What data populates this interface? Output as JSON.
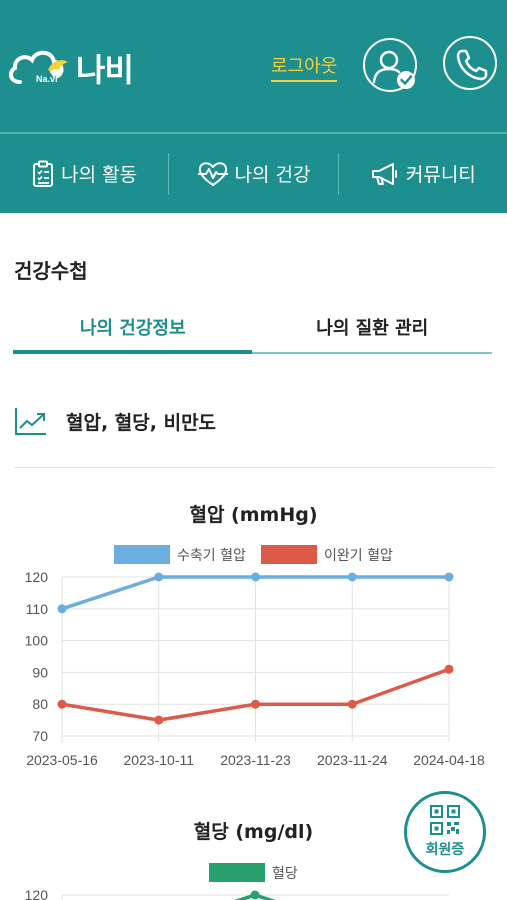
{
  "header": {
    "logo_sub": "Na.vi",
    "logo_text": "나비",
    "logout_label": "로그아웃"
  },
  "nav": {
    "items": [
      {
        "label": "나의 활동",
        "icon": "clipboard-list-icon"
      },
      {
        "label": "나의 건강",
        "icon": "heart-pulse-icon"
      },
      {
        "label": "커뮤니티",
        "icon": "megaphone-icon"
      }
    ]
  },
  "page": {
    "title": "건강수첩",
    "tabs": [
      {
        "label": "나의 건강정보",
        "active": true
      },
      {
        "label": "나의 질환 관리",
        "active": false
      }
    ],
    "section_label": "혈압, 혈당, 비만도"
  },
  "qr_button": {
    "label": "회원증"
  },
  "colors": {
    "brand": "#1e8f8f",
    "logout": "#f5d13a",
    "systolic": "#6aaee0",
    "diastolic": "#dc5a48",
    "glucose": "#27a06b"
  },
  "chart_data": [
    {
      "type": "line",
      "title": "혈압 (mmHg)",
      "x": [
        "2023-05-16",
        "2023-10-11",
        "2023-11-23",
        "2023-11-24",
        "2024-04-18"
      ],
      "series": [
        {
          "name": "수축기 혈압",
          "values": [
            110,
            120,
            120,
            120,
            120
          ]
        },
        {
          "name": "이완기 혈압",
          "values": [
            80,
            75,
            80,
            80,
            91
          ]
        }
      ],
      "ylim": [
        70,
        120
      ],
      "yticks": [
        "120",
        "110",
        "100",
        "90",
        "80",
        "70"
      ],
      "grid": true,
      "legend": "top"
    },
    {
      "type": "line",
      "title": "혈당 (mg/dl)",
      "series": [
        {
          "name": "혈당"
        }
      ],
      "yticks": [
        "120"
      ],
      "grid": true,
      "legend": "top"
    }
  ]
}
